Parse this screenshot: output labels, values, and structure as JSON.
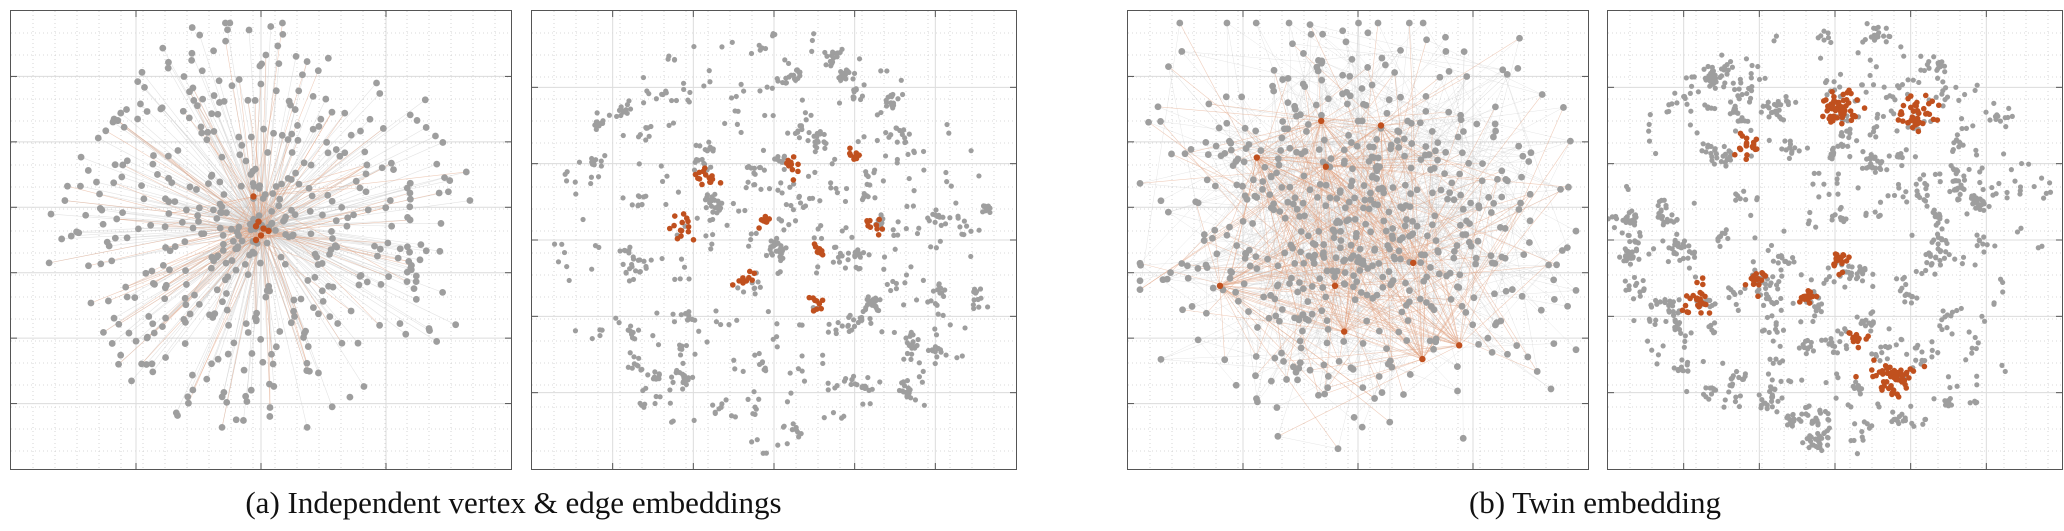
{
  "figure": {
    "captions": {
      "a": "(a) Independent vertex & edge embeddings",
      "b": "(b) Twin embedding"
    }
  },
  "colors": {
    "node": "#9e9e9e",
    "edge": "#c8c8c8",
    "highlight": "#c0501e",
    "highlight_edge": "#e2a585",
    "grid_major": "#dcdcdc",
    "grid_minor": "#cccccc",
    "frame": "#555555"
  },
  "chart_data": [
    {
      "type": "scatter",
      "subtype": "graph-layout-with-edges",
      "panel": "a-left",
      "title": "",
      "xlabel": "",
      "ylabel": "",
      "grid": true,
      "highlighted_node_groups": 1,
      "highlighted_nodes_approx": 8,
      "gray_nodes_approx": 500
    },
    {
      "type": "scatter",
      "subtype": "embedding-point-cloud",
      "panel": "a-right",
      "title": "",
      "xlabel": "",
      "ylabel": "",
      "grid": true,
      "highlighted_cluster_count": 9,
      "gray_points_approx": 900
    },
    {
      "type": "scatter",
      "subtype": "graph-layout-with-edges",
      "panel": "b-left",
      "title": "",
      "xlabel": "",
      "ylabel": "",
      "grid": true,
      "highlighted_nodes_approx": 10,
      "gray_nodes_approx": 600
    },
    {
      "type": "scatter",
      "subtype": "embedding-point-cloud",
      "panel": "b-right",
      "title": "",
      "xlabel": "",
      "ylabel": "",
      "grid": true,
      "highlighted_cluster_count": 9,
      "gray_points_approx": 900
    }
  ]
}
